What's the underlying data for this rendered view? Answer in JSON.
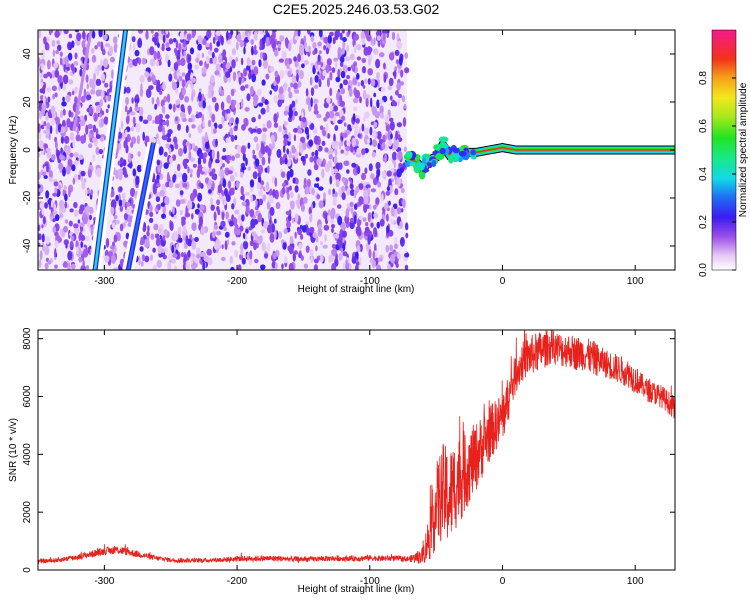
{
  "title": "C2E5.2025.246.03.53.G02",
  "chart_data": [
    {
      "type": "heatmap",
      "xlabel": "Height of straight line (km)",
      "ylabel": "Frequency (Hz)",
      "xlim": [
        -350,
        130
      ],
      "ylim": [
        -50,
        50
      ],
      "xticks": [
        -300,
        -200,
        -100,
        0,
        100
      ],
      "yticks": [
        -40,
        -20,
        0,
        20,
        40
      ],
      "noise_region_x": [
        -350,
        -72
      ],
      "signal_track": [
        {
          "x": -72,
          "y": -3
        },
        {
          "x": -65,
          "y": -5
        },
        {
          "x": -60,
          "y": -8
        },
        {
          "x": -55,
          "y": -4
        },
        {
          "x": -50,
          "y": -3
        },
        {
          "x": -45,
          "y": 2
        },
        {
          "x": -40,
          "y": -2
        },
        {
          "x": -35,
          "y": -1
        },
        {
          "x": -30,
          "y": -1
        },
        {
          "x": -20,
          "y": -1
        },
        {
          "x": -10,
          "y": 0
        },
        {
          "x": 0,
          "y": 1
        },
        {
          "x": 10,
          "y": 0
        },
        {
          "x": 30,
          "y": 0
        },
        {
          "x": 60,
          "y": 0
        },
        {
          "x": 100,
          "y": 0
        },
        {
          "x": 130,
          "y": 0
        }
      ],
      "streaks": [
        {
          "x": [
            -323,
            -310
          ],
          "y": [
            8,
            50
          ],
          "amplitude": 0.1
        },
        {
          "x": [
            -307,
            -284
          ],
          "y": [
            -50,
            50
          ],
          "amplitude": 0.4
        },
        {
          "x": [
            -282,
            -263
          ],
          "y": [
            -50,
            3
          ],
          "amplitude": 0.3
        }
      ],
      "colorbar": {
        "label": "Normalized spectral amplitude",
        "range": [
          0,
          1
        ],
        "ticks": [
          "0.0",
          "0.2",
          "0.4",
          "0.6",
          "0.8"
        ]
      }
    },
    {
      "type": "line",
      "xlabel": "Height of straight line (km)",
      "ylabel": "SNR (10 * v/v)",
      "xlim": [
        -350,
        130
      ],
      "ylim": [
        0,
        8300
      ],
      "xticks": [
        -300,
        -200,
        -100,
        0,
        100
      ],
      "yticks": [
        0,
        2000,
        4000,
        6000,
        8000
      ],
      "color": "#e8211c",
      "series": [
        {
          "x": [
            -350,
            -340,
            -330,
            -320,
            -310,
            -300,
            -290,
            -280,
            -270,
            -260,
            -250,
            -240,
            -230,
            -220,
            -210,
            -200,
            -190,
            -180,
            -170,
            -160,
            -150,
            -140,
            -130,
            -120,
            -110,
            -100,
            -90,
            -80,
            -70,
            -60,
            -55,
            -50,
            -45,
            -40,
            -35,
            -30,
            -25,
            -20,
            -15,
            -10,
            -5,
            0,
            5,
            10,
            15,
            20,
            25,
            30,
            35,
            40,
            45,
            50,
            55,
            60,
            65,
            70,
            75,
            80,
            85,
            90,
            95,
            100,
            105,
            110,
            115,
            120,
            125,
            130
          ],
          "y": [
            300,
            320,
            380,
            450,
            550,
            650,
            700,
            600,
            500,
            400,
            350,
            330,
            330,
            340,
            360,
            380,
            400,
            400,
            400,
            380,
            370,
            380,
            400,
            400,
            400,
            420,
            400,
            400,
            380,
            500,
            1200,
            2200,
            2700,
            2500,
            3000,
            3300,
            3600,
            3900,
            4300,
            4700,
            5000,
            5300,
            6000,
            6800,
            7200,
            7400,
            7500,
            7600,
            7700,
            7700,
            7600,
            7600,
            7500,
            7500,
            7400,
            7300,
            7200,
            7100,
            7000,
            6900,
            6800,
            6600,
            6400,
            6200,
            6100,
            6000,
            5800,
            5600
          ],
          "noise": [
            80,
            80,
            90,
            100,
            120,
            130,
            150,
            130,
            110,
            90,
            80,
            80,
            80,
            80,
            90,
            90,
            100,
            100,
            100,
            100,
            90,
            90,
            100,
            100,
            100,
            100,
            100,
            100,
            100,
            300,
            900,
            1500,
            1700,
            1700,
            1600,
            1500,
            1300,
            1200,
            1100,
            1000,
            900,
            900,
            800,
            700,
            700,
            700,
            700,
            700,
            600,
            600,
            600,
            600,
            600,
            600,
            600,
            600,
            500,
            500,
            500,
            500,
            500,
            500,
            400,
            400,
            400,
            400,
            400,
            400
          ]
        }
      ]
    }
  ]
}
